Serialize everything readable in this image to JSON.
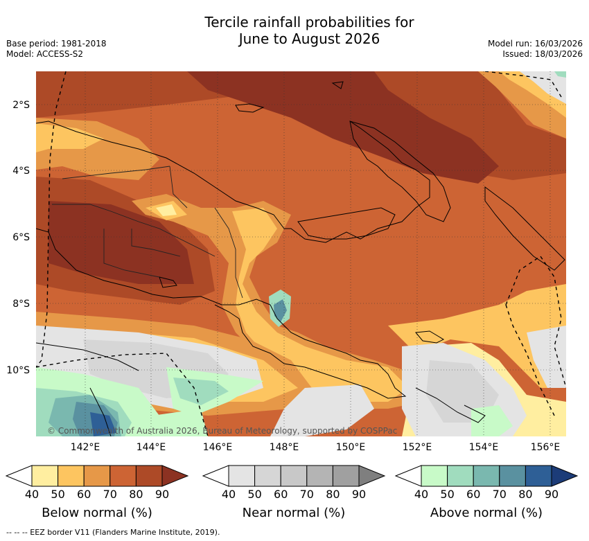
{
  "title_line1": "Tercile rainfall probabilities for",
  "title_line2": "June to August 2026",
  "meta_left": [
    "Base period: 1981-2018",
    "Model: ACCESS-S2"
  ],
  "meta_right": [
    "Model run: 16/03/2026",
    "Issued: 18/03/2026"
  ],
  "lat_labels": [
    "2°S",
    "4°S",
    "6°S",
    "8°S",
    "10°S"
  ],
  "lon_labels": [
    "142°E",
    "144°E",
    "146°E",
    "148°E",
    "150°E",
    "152°E",
    "154°E",
    "156°E"
  ],
  "copyright": "© Commonwealth of Australia 2026, Bureau of Meteorology, supported by COSPPac",
  "colorbars": [
    {
      "label": "Below normal (%)",
      "ticks": [
        "40",
        "50",
        "60",
        "70",
        "80",
        "90"
      ],
      "colors": [
        "#ffffff",
        "#ffeea0",
        "#fdc560",
        "#e69848",
        "#cd6434",
        "#ad4a27",
        "#8c3222"
      ]
    },
    {
      "label": "Near normal (%)",
      "ticks": [
        "40",
        "50",
        "60",
        "70",
        "80",
        "90"
      ],
      "colors": [
        "#ffffff",
        "#e4e4e4",
        "#d6d6d6",
        "#c8c8c8",
        "#b4b4b4",
        "#a0a0a0",
        "#7f7f7f"
      ]
    },
    {
      "label": "Above normal (%)",
      "ticks": [
        "40",
        "50",
        "60",
        "70",
        "80",
        "90"
      ],
      "colors": [
        "#ffffff",
        "#c8fac8",
        "#a0dcbe",
        "#7ab8af",
        "#5a91a0",
        "#2e5f96",
        "#1c3c78"
      ]
    }
  ],
  "footnote": "--  --  -- EEZ border V11 (Flanders Marine Institute, 2019)."
}
